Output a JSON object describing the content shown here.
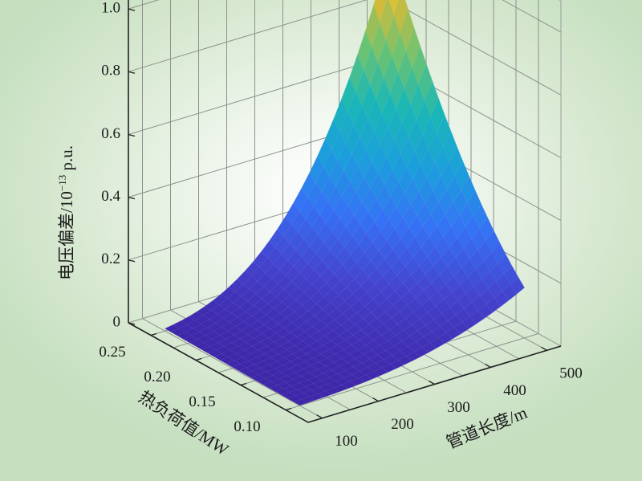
{
  "chart_data": {
    "type": "surface",
    "title": "",
    "xlabel": "管道长度/m",
    "ylabel": "热负荷值/MW",
    "zlabel_main": "电压偏差/10",
    "zlabel_exp": "−13",
    "zlabel_unit": " p.u.",
    "xlim": [
      75,
      525
    ],
    "ylim": [
      0.075,
      0.275
    ],
    "zlim": [
      0,
      1.1
    ],
    "x_ticks": [
      100,
      200,
      300,
      400,
      500
    ],
    "y_ticks": [
      0.1,
      0.15,
      0.2,
      0.25
    ],
    "z_ticks": [
      0,
      0.2,
      0.4,
      0.6,
      0.8,
      1.0
    ],
    "x_tick_labels": [
      "100",
      "200",
      "300",
      "400",
      "500"
    ],
    "y_tick_labels": [
      "0.10",
      "0.15",
      "0.20",
      "0.25"
    ],
    "z_tick_labels": [
      "0",
      "0.2",
      "0.4",
      "0.6",
      "0.8",
      "1.0"
    ],
    "x_grid": [
      100,
      150,
      200,
      250,
      300,
      350,
      400,
      450,
      500
    ],
    "y_grid": [
      0.1,
      0.125,
      0.15,
      0.175,
      0.2,
      0.225,
      0.25
    ],
    "z_model": {
      "form": "z = coef * (x/100)^3 * (y/0.1)^2",
      "coef": 0.00128
    },
    "colormap": [
      "#3e26a8",
      "#4443ce",
      "#3572f5",
      "#1b9fdb",
      "#1ab7b6",
      "#6cc372",
      "#d3bb3a",
      "#f8e61b"
    ],
    "grid": true
  }
}
